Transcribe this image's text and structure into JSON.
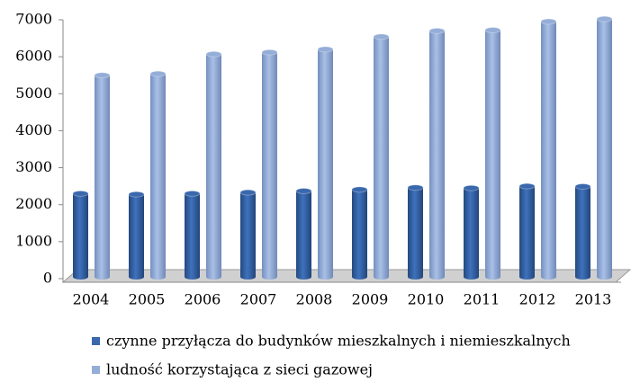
{
  "chart_data": {
    "type": "bar3d",
    "categories": [
      "2004",
      "2005",
      "2006",
      "2007",
      "2008",
      "2009",
      "2010",
      "2011",
      "2012",
      "2013"
    ],
    "series": [
      {
        "name": "czynne przyłącza do budynków mieszkalnych i niemieszkalnych",
        "color": "#3a68ad",
        "values": [
          2300,
          2280,
          2300,
          2330,
          2370,
          2410,
          2460,
          2450,
          2500,
          2490
        ]
      },
      {
        "name": "ludność korzystająca z sieci gazowej",
        "color": "#95aed8",
        "values": [
          5500,
          5540,
          6070,
          6120,
          6200,
          6540,
          6700,
          6720,
          6950,
          7020
        ]
      }
    ],
    "ylim": [
      0,
      7000
    ],
    "yticks": [
      0,
      1000,
      2000,
      3000,
      4000,
      5000,
      6000,
      7000
    ]
  }
}
